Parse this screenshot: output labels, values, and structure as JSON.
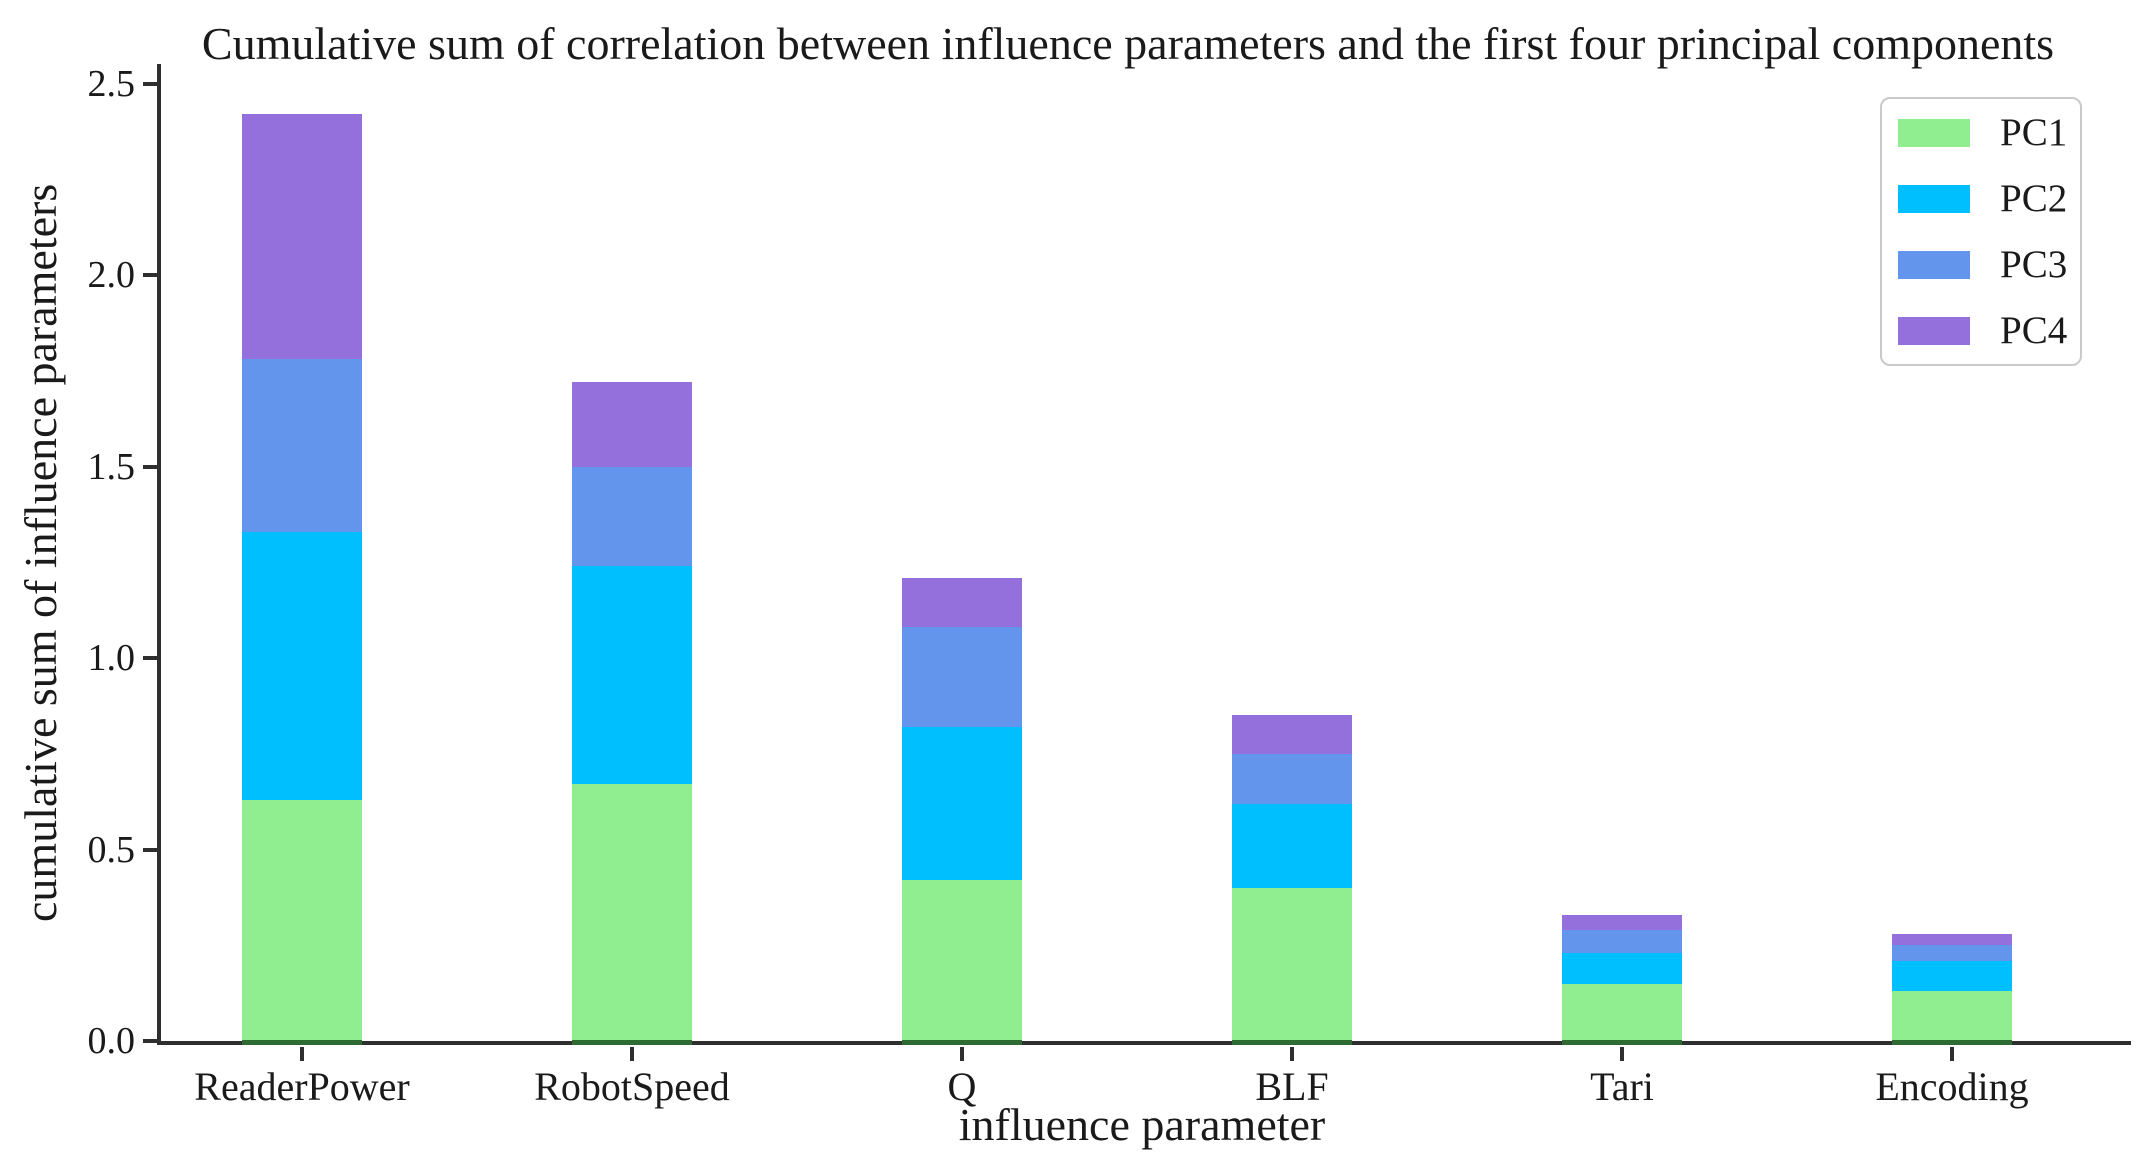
{
  "chart_data": {
    "type": "bar",
    "stacked": true,
    "title": "Cumulative sum of correlation between influence parameters and the first four principal components",
    "xlabel": "influence parameter",
    "ylabel": "cumulative sum of influence parameters",
    "categories": [
      "ReaderPower",
      "RobotSpeed",
      "Q",
      "BLF",
      "Tari",
      "Encoding"
    ],
    "series": [
      {
        "name": "PC1",
        "color": "#90EE90",
        "values": [
          0.63,
          0.67,
          0.42,
          0.4,
          0.15,
          0.13
        ]
      },
      {
        "name": "PC2",
        "color": "#00BFFF",
        "values": [
          0.7,
          0.57,
          0.4,
          0.22,
          0.08,
          0.08
        ]
      },
      {
        "name": "PC3",
        "color": "#6495ED",
        "values": [
          0.45,
          0.26,
          0.26,
          0.13,
          0.06,
          0.04
        ]
      },
      {
        "name": "PC4",
        "color": "#9370DB",
        "values": [
          0.64,
          0.22,
          0.13,
          0.1,
          0.04,
          0.03
        ]
      }
    ],
    "ylim": [
      0,
      2.5
    ],
    "yticks": [
      "0.0",
      "0.5",
      "1.0",
      "1.5",
      "2.0",
      "2.5"
    ],
    "grid": false,
    "legend_position": "upper right"
  },
  "colors": {
    "axis": "#2f2f2f",
    "text": "#1a1a1a",
    "bar_base_edge": "#2e6b33",
    "legend_border": "#c9c9c9",
    "background": "#ffffff"
  }
}
